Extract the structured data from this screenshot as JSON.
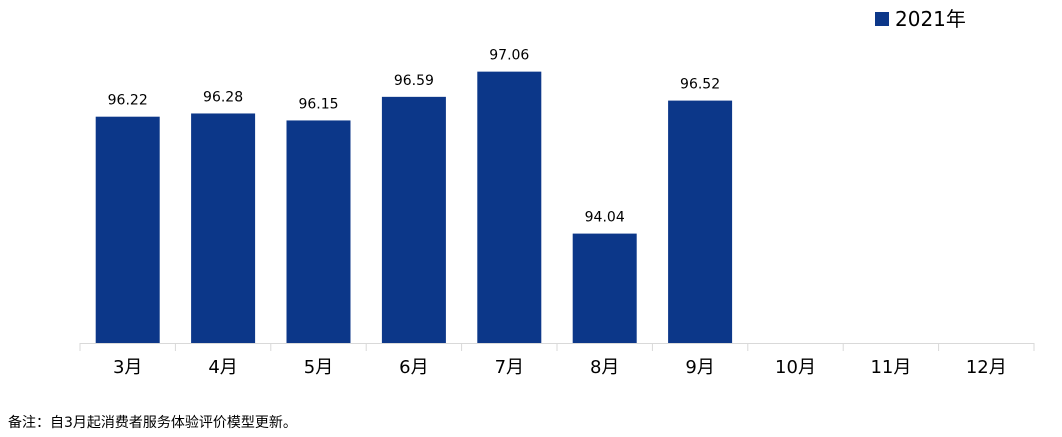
{
  "chart_data": {
    "type": "bar",
    "categories": [
      "3月",
      "4月",
      "5月",
      "6月",
      "7月",
      "8月",
      "9月",
      "10月",
      "11月",
      "12月"
    ],
    "series": [
      {
        "name": "2021年",
        "color": "#0c3789",
        "values": [
          96.22,
          96.28,
          96.15,
          96.59,
          97.06,
          94.04,
          96.52,
          null,
          null,
          null
        ]
      }
    ],
    "value_labels": [
      "96.22",
      "96.28",
      "96.15",
      "96.59",
      "97.06",
      "94.04",
      "96.52",
      null,
      null,
      null
    ],
    "ylim": [
      0,
      100
    ],
    "grid": false,
    "legend_position": "top-right",
    "title": "",
    "xlabel": "",
    "ylabel": ""
  },
  "note": "备注：自3月起消费者服务体验评价模型更新。",
  "colors": {
    "bar": "#0c3789",
    "axis": "#d9d9d9",
    "text": "#000000"
  }
}
